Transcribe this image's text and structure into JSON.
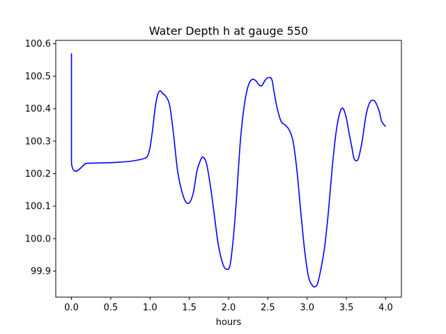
{
  "chart_data": {
    "type": "line",
    "title": "Water Depth h at gauge 550",
    "xlabel": "hours",
    "ylabel": "",
    "xlim": [
      -0.2,
      4.2
    ],
    "ylim": [
      99.82,
      100.61
    ],
    "x_ticks": [
      0.0,
      0.5,
      1.0,
      1.5,
      2.0,
      2.5,
      3.0,
      3.5,
      4.0
    ],
    "x_tick_labels": [
      "0.0",
      "0.5",
      "1.0",
      "1.5",
      "2.0",
      "2.5",
      "3.0",
      "3.5",
      "4.0"
    ],
    "y_ticks": [
      99.9,
      100.0,
      100.1,
      100.2,
      100.3,
      100.4,
      100.5,
      100.6
    ],
    "y_tick_labels": [
      "99.9",
      "100.0",
      "100.1",
      "100.2",
      "100.3",
      "100.4",
      "100.5",
      "100.6"
    ],
    "grid": false,
    "series": [
      {
        "color": "#0000ff",
        "x": [
          0.0,
          0.0,
          0.2,
          0.4,
          0.6,
          0.75,
          0.85,
          0.93,
          0.97,
          1.0,
          1.03,
          1.07,
          1.1,
          1.13,
          1.16,
          1.2,
          1.25,
          1.3,
          1.35,
          1.4,
          1.45,
          1.5,
          1.55,
          1.6,
          1.65,
          1.68,
          1.72,
          1.77,
          1.82,
          1.87,
          1.93,
          1.98,
          2.02,
          2.06,
          2.1,
          2.15,
          2.2,
          2.25,
          2.3,
          2.35,
          2.38,
          2.42,
          2.46,
          2.5,
          2.55,
          2.58,
          2.62,
          2.67,
          2.72,
          2.77,
          2.82,
          2.87,
          2.92,
          2.97,
          3.02,
          3.07,
          3.1,
          3.13,
          3.17,
          3.22,
          3.27,
          3.32,
          3.37,
          3.42,
          3.46,
          3.5,
          3.53,
          3.57,
          3.6,
          3.65,
          3.7,
          3.75,
          3.8,
          3.85,
          3.88,
          3.92,
          3.95,
          4.0
        ],
        "y": [
          100.57,
          100.232,
          100.232,
          100.233,
          100.235,
          100.238,
          100.242,
          100.247,
          100.255,
          100.28,
          100.33,
          100.41,
          100.445,
          100.455,
          100.447,
          100.438,
          100.41,
          100.32,
          100.21,
          100.15,
          100.115,
          100.11,
          100.14,
          100.21,
          100.245,
          100.25,
          100.23,
          100.16,
          100.07,
          99.98,
          99.92,
          99.905,
          99.92,
          100.0,
          100.12,
          100.3,
          100.41,
          100.47,
          100.49,
          100.485,
          100.475,
          100.47,
          100.485,
          100.495,
          100.49,
          100.45,
          100.4,
          100.36,
          100.35,
          100.335,
          100.3,
          100.21,
          100.08,
          99.96,
          99.88,
          99.855,
          99.852,
          99.86,
          99.9,
          99.97,
          100.08,
          100.22,
          100.33,
          100.39,
          100.4,
          100.37,
          100.33,
          100.28,
          100.245,
          100.245,
          100.3,
          100.38,
          100.42,
          100.425,
          100.415,
          100.39,
          100.36,
          100.345
        ]
      }
    ]
  }
}
